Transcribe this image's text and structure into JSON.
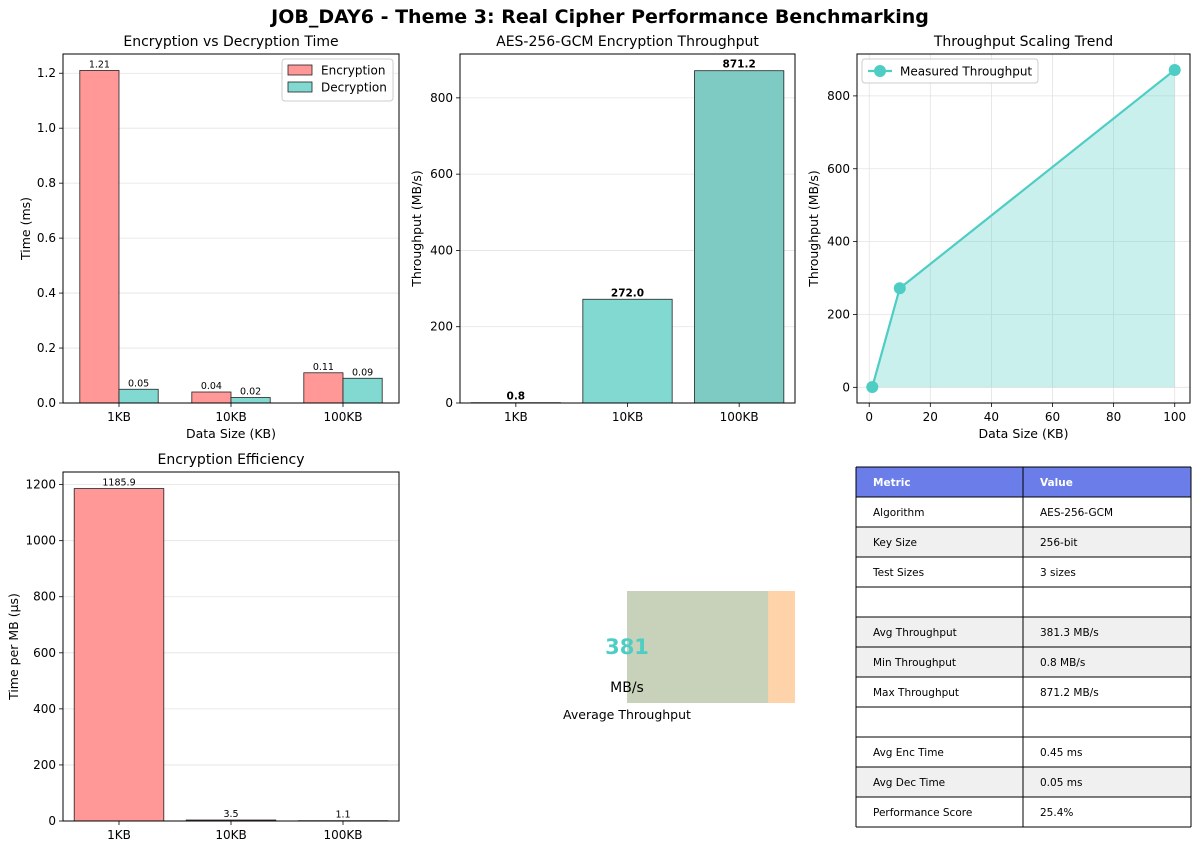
{
  "figure_title": "JOB_DAY6 - Theme 3: Real Cipher Performance Benchmarking",
  "chart_data": [
    {
      "id": "enc-dec-time",
      "type": "bar",
      "title": "Encryption vs Decryption Time",
      "xlabel": "Data Size (KB)",
      "ylabel": "Time (ms)",
      "categories": [
        "1KB",
        "10KB",
        "100KB"
      ],
      "series": [
        {
          "name": "Encryption",
          "values": [
            1.21,
            0.04,
            0.11
          ],
          "labels": [
            "1.21",
            "0.04",
            "0.11"
          ],
          "color": "#ff9896"
        },
        {
          "name": "Decryption",
          "values": [
            0.05,
            0.02,
            0.09
          ],
          "labels": [
            "0.05",
            "0.02",
            "0.09"
          ],
          "color": "#82d9d2"
        }
      ],
      "ylim": [
        0,
        1.27
      ],
      "yticks": [
        0.0,
        0.2,
        0.4,
        0.6,
        0.8,
        1.0,
        1.2
      ],
      "ytick_labels": [
        "0.0",
        "0.2",
        "0.4",
        "0.6",
        "0.8",
        "1.0",
        "1.2"
      ],
      "grid": "y",
      "legend": "top-right"
    },
    {
      "id": "throughput-bar",
      "type": "bar",
      "title": "AES-256-GCM Encryption Throughput",
      "xlabel": "",
      "ylabel": "Throughput (MB/s)",
      "categories": [
        "1KB",
        "10KB",
        "100KB"
      ],
      "values": [
        0.8,
        272.0,
        871.2
      ],
      "labels": [
        "0.8",
        "272.0",
        "871.2"
      ],
      "colors": [
        "#ff9896",
        "#82d9d2",
        "#7dcbc2"
      ],
      "ylim": [
        0,
        915
      ],
      "yticks": [
        0,
        200,
        400,
        600,
        800
      ],
      "ytick_labels": [
        "0",
        "200",
        "400",
        "600",
        "800"
      ],
      "grid": "y"
    },
    {
      "id": "throughput-trend",
      "type": "area",
      "title": "Throughput Scaling Trend",
      "xlabel": "Data Size (KB)",
      "ylabel": "Throughput (MB/s)",
      "series": [
        {
          "name": "Measured Throughput",
          "x": [
            1,
            10,
            100
          ],
          "y": [
            0.8,
            272.0,
            871.2
          ],
          "color": "#4ecdc4"
        }
      ],
      "xlim": [
        -4,
        105
      ],
      "ylim": [
        -43,
        915
      ],
      "xticks": [
        0,
        20,
        40,
        60,
        80,
        100
      ],
      "xtick_labels": [
        "0",
        "20",
        "40",
        "60",
        "80",
        "100"
      ],
      "yticks": [
        0,
        200,
        400,
        600,
        800
      ],
      "ytick_labels": [
        "0",
        "200",
        "400",
        "600",
        "800"
      ],
      "grid": "both",
      "legend": "top-left"
    },
    {
      "id": "efficiency",
      "type": "bar",
      "title": "Encryption Efficiency",
      "xlabel": "",
      "ylabel": "Time per MB (μs)",
      "categories": [
        "1KB",
        "10KB",
        "100KB"
      ],
      "values": [
        1185.9,
        3.5,
        1.1
      ],
      "labels": [
        "1185.9",
        "3.5",
        "1.1"
      ],
      "color": "#ff9896",
      "ylim": [
        0,
        1245
      ],
      "yticks": [
        0,
        200,
        400,
        600,
        800,
        1000,
        1200
      ],
      "ytick_labels": [
        "0",
        "200",
        "400",
        "600",
        "800",
        "1000",
        "1200"
      ],
      "grid": "y"
    }
  ],
  "gauge": {
    "value": "381",
    "unit": "MB/s",
    "label": "Average Throughput",
    "fraction": 0.84,
    "fill_color": "#c8d1b9",
    "track_color": "#ffd3aa",
    "value_color": "#4ecdc4"
  },
  "table": {
    "headers": [
      "Metric",
      "Value"
    ],
    "header_color": "#6a7de8",
    "rows": [
      [
        "Algorithm",
        "AES-256-GCM"
      ],
      [
        "Key Size",
        "256-bit"
      ],
      [
        "Test Sizes",
        "3 sizes"
      ],
      [
        "",
        ""
      ],
      [
        "Avg Throughput",
        "381.3 MB/s"
      ],
      [
        "Min Throughput",
        "0.8 MB/s"
      ],
      [
        "Max Throughput",
        "871.2 MB/s"
      ],
      [
        "",
        ""
      ],
      [
        "Avg Enc Time",
        "0.45 ms"
      ],
      [
        "Avg Dec Time",
        "0.05 ms"
      ],
      [
        "Performance Score",
        "25.4%"
      ]
    ],
    "shaded_rows": [
      1,
      4,
      5,
      9
    ]
  }
}
